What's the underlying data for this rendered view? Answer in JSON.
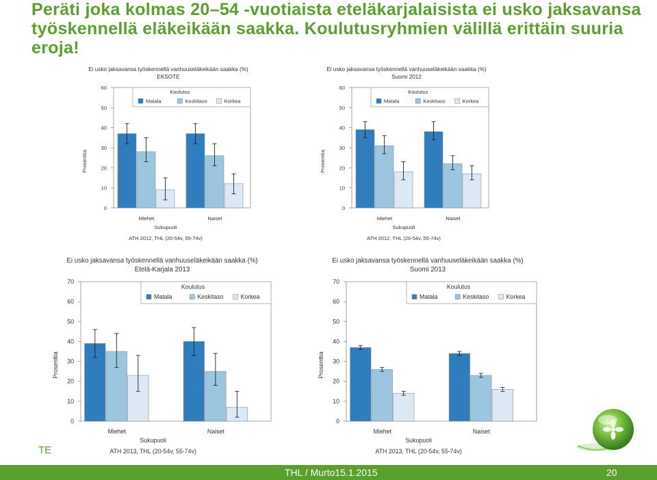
{
  "slide": {
    "title": "Peräti joka kolmas 20–54 -vuotiaista eteläkarjalaisista ei usko jaksavansa työskennellä eläkeikään saakka. Koulutusryhmien välillä erittäin suuria eroja!",
    "side_label": "TE",
    "footer_text": "THL / Murto15.1.2015",
    "page_number": "20"
  },
  "colors": {
    "title": "#5aa02c",
    "footer": "#5aa02c",
    "matala": "#2f7dbd",
    "keskitaso": "#9cc5e0",
    "korkea": "#dce9f5",
    "frame": "#a6a6a6"
  },
  "chart_data": [
    {
      "type": "bar",
      "title": "Ei usko jaksavansa työskennellä vanhuuseläkeikään saakka (%)",
      "subtitle": "EKSOTE",
      "categories": [
        "Miehet",
        "Naiset"
      ],
      "xlabel": "Sukupuoli",
      "ylabel": "Prosenttia",
      "ylim": [
        0,
        60
      ],
      "yticks": [
        0,
        10,
        20,
        30,
        40,
        50,
        60
      ],
      "legend_title": "Koulutus",
      "legend_position": "top-right",
      "source": "ATH 2012, THL (20-54v, 55-74v)",
      "series": [
        {
          "name": "Matala",
          "values": [
            37,
            37
          ],
          "err_low": [
            32,
            32
          ],
          "err_high": [
            42,
            42
          ]
        },
        {
          "name": "Keskitaso",
          "values": [
            28,
            26
          ],
          "err_low": [
            23,
            21
          ],
          "err_high": [
            35,
            32
          ]
        },
        {
          "name": "Korkea",
          "values": [
            9,
            12
          ],
          "err_low": [
            4,
            7
          ],
          "err_high": [
            15,
            17
          ]
        }
      ]
    },
    {
      "type": "bar",
      "title": "Ei usko jaksavansa työskennellä vanhuuseläkeikään saakka (%)",
      "subtitle": "Suomi 2012",
      "categories": [
        "Miehet",
        "Naiset"
      ],
      "xlabel": "Sukupuoli",
      "ylabel": "Prosenttia",
      "ylim": [
        0,
        60
      ],
      "yticks": [
        0,
        10,
        20,
        30,
        40,
        50,
        60
      ],
      "legend_title": "Koulutus",
      "legend_position": "top-right",
      "source": "ATH 2012, THL (20-54v, 55-74v)",
      "series": [
        {
          "name": "Matala",
          "values": [
            39,
            38
          ],
          "err_low": [
            35,
            34
          ],
          "err_high": [
            43,
            43
          ]
        },
        {
          "name": "Keskitaso",
          "values": [
            31,
            22
          ],
          "err_low": [
            27,
            19
          ],
          "err_high": [
            36,
            26
          ]
        },
        {
          "name": "Korkea",
          "values": [
            18,
            17
          ],
          "err_low": [
            14,
            14
          ],
          "err_high": [
            23,
            21
          ]
        }
      ]
    },
    {
      "type": "bar",
      "title": "Ei usko jaksavansa työskennellä vanhuuseläkeikään saakka (%)",
      "subtitle": "Etelä-Karjala 2013",
      "categories": [
        "Miehet",
        "Naiset"
      ],
      "xlabel": "Sukupuoli",
      "ylabel": "Prosenttia",
      "ylim": [
        0,
        70
      ],
      "yticks": [
        0,
        10,
        20,
        30,
        40,
        50,
        60,
        70
      ],
      "legend_title": "Koulutus",
      "legend_position": "top-right",
      "source": "ATH 2013, THL (20-54v, 55-74v)",
      "series": [
        {
          "name": "Matala",
          "values": [
            39,
            40
          ],
          "err_low": [
            32,
            33
          ],
          "err_high": [
            46,
            47
          ]
        },
        {
          "name": "Keskitaso",
          "values": [
            35,
            25
          ],
          "err_low": [
            27,
            18
          ],
          "err_high": [
            44,
            34
          ]
        },
        {
          "name": "Korkea",
          "values": [
            23,
            7
          ],
          "err_low": [
            15,
            2
          ],
          "err_high": [
            33,
            15
          ]
        }
      ]
    },
    {
      "type": "bar",
      "title": "Ei usko jaksavansa työskennellä vanhuuseläkeikään saakka (%)",
      "subtitle": "Suomi 2013",
      "categories": [
        "Miehet",
        "Naiset"
      ],
      "xlabel": "Sukupuoli",
      "ylabel": "Prosenttia",
      "ylim": [
        0,
        70
      ],
      "yticks": [
        0,
        10,
        20,
        30,
        40,
        50,
        60,
        70
      ],
      "legend_title": "Koulutus",
      "legend_position": "top-right",
      "source": "ATH 2013, THL (20-54v, 55-74v)",
      "series": [
        {
          "name": "Matala",
          "values": [
            37,
            34
          ],
          "err_low": [
            36,
            33
          ],
          "err_high": [
            38,
            35
          ]
        },
        {
          "name": "Keskitaso",
          "values": [
            26,
            23
          ],
          "err_low": [
            25,
            22
          ],
          "err_high": [
            27,
            24
          ]
        },
        {
          "name": "Korkea",
          "values": [
            14,
            16
          ],
          "err_low": [
            13,
            15
          ],
          "err_high": [
            15,
            17
          ]
        }
      ]
    }
  ]
}
